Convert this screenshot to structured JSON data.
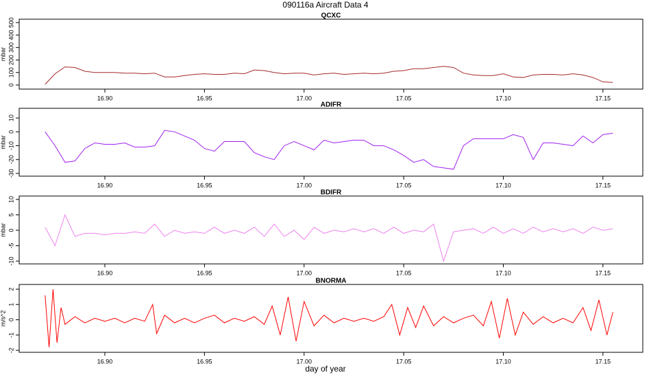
{
  "title": "090116a   Aircraft Data 4",
  "xlabel": "day of year",
  "chart_data": [
    {
      "type": "line",
      "title": "QCXC",
      "ylabel": "mbar",
      "color": "#a52a2a",
      "xlim": [
        16.857,
        17.17
      ],
      "ylim": [
        -33,
        527
      ],
      "xticks": [
        {
          "value": 16.9,
          "label": "16.90"
        },
        {
          "value": 16.95,
          "label": "16.95"
        },
        {
          "value": 17.0,
          "label": "17.00"
        },
        {
          "value": 17.05,
          "label": "17.05"
        },
        {
          "value": 17.1,
          "label": "17.10"
        },
        {
          "value": 17.15,
          "label": "17.15"
        }
      ],
      "yticks": [
        0,
        100,
        200,
        300,
        400,
        500
      ],
      "x": [
        16.87,
        16.875,
        16.88,
        16.885,
        16.89,
        16.895,
        16.9,
        16.905,
        16.91,
        16.915,
        16.92,
        16.925,
        16.93,
        16.935,
        16.94,
        16.945,
        16.95,
        16.955,
        16.96,
        16.965,
        16.97,
        16.975,
        16.98,
        16.985,
        16.99,
        16.995,
        17.0,
        17.005,
        17.01,
        17.015,
        17.02,
        17.025,
        17.03,
        17.035,
        17.04,
        17.045,
        17.05,
        17.055,
        17.06,
        17.065,
        17.07,
        17.075,
        17.08,
        17.085,
        17.09,
        17.095,
        17.1,
        17.105,
        17.11,
        17.115,
        17.12,
        17.125,
        17.13,
        17.135,
        17.14,
        17.145,
        17.15,
        17.155
      ],
      "values": [
        5,
        90,
        145,
        140,
        110,
        100,
        100,
        100,
        95,
        95,
        90,
        95,
        65,
        65,
        75,
        85,
        90,
        85,
        85,
        95,
        90,
        120,
        115,
        100,
        90,
        95,
        95,
        80,
        90,
        95,
        85,
        90,
        95,
        90,
        95,
        110,
        115,
        130,
        130,
        140,
        150,
        140,
        95,
        80,
        75,
        75,
        90,
        65,
        60,
        80,
        85,
        85,
        80,
        90,
        80,
        60,
        25,
        20
      ]
    },
    {
      "type": "line",
      "title": "ADIFR",
      "ylabel": "mbar",
      "color": "#a020f0",
      "xlim": [
        16.857,
        17.17
      ],
      "ylim": [
        -32,
        17
      ],
      "xticks": [
        {
          "value": 16.9,
          "label": "16.90"
        },
        {
          "value": 16.95,
          "label": "16.95"
        },
        {
          "value": 17.0,
          "label": "17.00"
        },
        {
          "value": 17.05,
          "label": "17.05"
        },
        {
          "value": 17.1,
          "label": "17.10"
        },
        {
          "value": 17.15,
          "label": "17.15"
        }
      ],
      "yticks": [
        10,
        0,
        -10,
        -20,
        -30
      ],
      "x": [
        16.87,
        16.875,
        16.88,
        16.885,
        16.89,
        16.895,
        16.9,
        16.905,
        16.91,
        16.915,
        16.92,
        16.925,
        16.93,
        16.935,
        16.94,
        16.945,
        16.95,
        16.955,
        16.96,
        16.965,
        16.97,
        16.975,
        16.98,
        16.985,
        16.99,
        16.995,
        17.0,
        17.005,
        17.01,
        17.015,
        17.02,
        17.025,
        17.03,
        17.035,
        17.04,
        17.045,
        17.05,
        17.055,
        17.06,
        17.065,
        17.07,
        17.075,
        17.08,
        17.085,
        17.09,
        17.095,
        17.1,
        17.105,
        17.11,
        17.115,
        17.12,
        17.125,
        17.13,
        17.135,
        17.14,
        17.145,
        17.15,
        17.155
      ],
      "values": [
        0,
        -10,
        -22,
        -21,
        -12,
        -8,
        -9,
        -9,
        -8,
        -11,
        -11,
        -10,
        1,
        0,
        -3,
        -6,
        -12,
        -14,
        -7,
        -7,
        -7,
        -15,
        -18,
        -20,
        -10,
        -7,
        -10,
        -13,
        -6,
        -8,
        -7,
        -6,
        -6,
        -10,
        -10,
        -13,
        -17,
        -22,
        -20,
        -25,
        -26,
        -27,
        -10,
        -5,
        -5,
        -5,
        -5,
        -2,
        -4,
        -20,
        -8,
        -8,
        -9,
        -10,
        -3,
        -8,
        -2,
        -1
      ]
    },
    {
      "type": "line",
      "title": "BDIFR",
      "ylabel": "mbar",
      "color": "#ee82ee",
      "xlim": [
        16.857,
        17.17
      ],
      "ylim": [
        -10.9,
        11.1
      ],
      "xticks": [
        {
          "value": 16.9,
          "label": "16.90"
        },
        {
          "value": 16.95,
          "label": "16.95"
        },
        {
          "value": 17.0,
          "label": "17.00"
        },
        {
          "value": 17.05,
          "label": "17.05"
        },
        {
          "value": 17.1,
          "label": "17.10"
        },
        {
          "value": 17.15,
          "label": "17.15"
        }
      ],
      "yticks": [
        10,
        5,
        0,
        -5,
        -10
      ],
      "x": [
        16.87,
        16.875,
        16.88,
        16.885,
        16.89,
        16.895,
        16.9,
        16.905,
        16.91,
        16.915,
        16.92,
        16.925,
        16.93,
        16.935,
        16.94,
        16.945,
        16.95,
        16.955,
        16.96,
        16.965,
        16.97,
        16.975,
        16.98,
        16.985,
        16.99,
        16.995,
        17.0,
        17.005,
        17.01,
        17.015,
        17.02,
        17.025,
        17.03,
        17.035,
        17.04,
        17.045,
        17.05,
        17.055,
        17.06,
        17.065,
        17.07,
        17.075,
        17.08,
        17.085,
        17.09,
        17.095,
        17.1,
        17.105,
        17.11,
        17.115,
        17.12,
        17.125,
        17.13,
        17.135,
        17.14,
        17.145,
        17.15,
        17.155
      ],
      "values": [
        1,
        -5,
        5,
        -2,
        -1,
        -1,
        -1.5,
        -1,
        -1,
        -0.5,
        -1,
        2,
        -2,
        0,
        -1,
        -0.5,
        -1,
        1,
        -1,
        0,
        -1,
        1,
        -2,
        2,
        -2,
        0,
        -3,
        1,
        -1,
        0,
        -0.5,
        0.5,
        -0.5,
        0.5,
        -1,
        1,
        -1,
        0,
        -0.5,
        2,
        -10,
        -0.5,
        0,
        0.5,
        -1,
        1,
        -1,
        0.5,
        -1,
        1,
        -0.5,
        0.5,
        -0.5,
        0.5,
        -1,
        1,
        0,
        0.5
      ]
    },
    {
      "type": "line",
      "title": "BNORMA",
      "ylabel": "m/s^2",
      "color": "#ff0000",
      "xlim": [
        16.857,
        17.17
      ],
      "ylim": [
        -2.13,
        2.31
      ],
      "xticks": [
        {
          "value": 16.9,
          "label": "16.90"
        },
        {
          "value": 16.95,
          "label": "16.95"
        },
        {
          "value": 17.0,
          "label": "17.00"
        },
        {
          "value": 17.05,
          "label": "17.05"
        },
        {
          "value": 17.1,
          "label": "17.10"
        },
        {
          "value": 17.15,
          "label": "17.15"
        }
      ],
      "yticks": [
        2,
        1,
        0,
        -1,
        -2
      ],
      "x": [
        16.87,
        16.872,
        16.874,
        16.876,
        16.878,
        16.88,
        16.885,
        16.89,
        16.895,
        16.9,
        16.905,
        16.91,
        16.915,
        16.92,
        16.924,
        16.926,
        16.93,
        16.935,
        16.94,
        16.945,
        16.95,
        16.955,
        16.96,
        16.965,
        16.97,
        16.975,
        16.98,
        16.984,
        16.988,
        16.992,
        16.996,
        17.0,
        17.005,
        17.01,
        17.015,
        17.02,
        17.025,
        17.03,
        17.035,
        17.04,
        17.044,
        17.048,
        17.052,
        17.056,
        17.06,
        17.065,
        17.07,
        17.075,
        17.08,
        17.085,
        17.09,
        17.094,
        17.098,
        17.102,
        17.106,
        17.11,
        17.115,
        17.12,
        17.125,
        17.13,
        17.135,
        17.14,
        17.144,
        17.148,
        17.152,
        17.155
      ],
      "values": [
        1.6,
        -1.8,
        2,
        -1.5,
        0.8,
        -0.3,
        0.2,
        -0.2,
        0.1,
        -0.1,
        0.1,
        -0.2,
        0.1,
        -0.1,
        1,
        -0.9,
        0.3,
        -0.2,
        0.1,
        -0.2,
        0.1,
        0.3,
        -0.2,
        0.1,
        -0.1,
        0.2,
        -0.3,
        0.9,
        -1,
        1.5,
        -1.4,
        1.2,
        -0.4,
        0.3,
        -0.2,
        0.1,
        -0.1,
        0.1,
        -0.1,
        0.2,
        1,
        -1,
        0.8,
        -0.5,
        0.9,
        -0.4,
        0.2,
        -0.2,
        0.1,
        0.3,
        -0.4,
        1.2,
        -1.2,
        1.4,
        -1,
        0.5,
        -0.3,
        0.2,
        -0.2,
        0.1,
        -0.2,
        0.8,
        -0.7,
        1.3,
        -1,
        0.5
      ]
    }
  ]
}
